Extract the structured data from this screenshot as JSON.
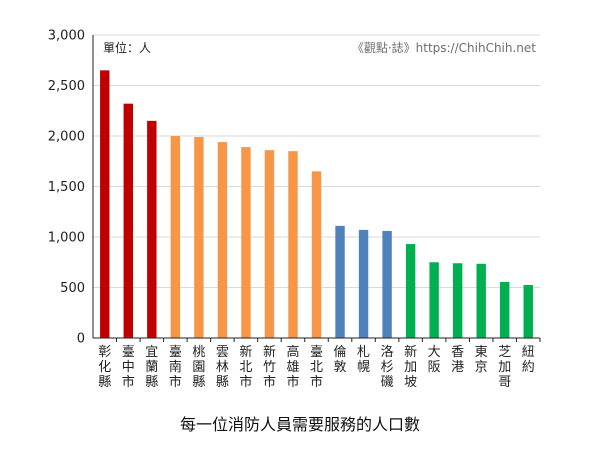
{
  "chart_data": {
    "type": "bar",
    "title": "每一位消防人員需要服務的人口數",
    "unit_label": "單位：人",
    "watermark": "《觀點·誌》https://ChihChih.net",
    "ylim": [
      0,
      3000
    ],
    "yticks": [
      0,
      500,
      1000,
      1500,
      2000,
      2500,
      3000
    ],
    "ytick_labels": [
      "0",
      "500",
      "1,000",
      "1,500",
      "2,000",
      "2,500",
      "3,000"
    ],
    "grid": true,
    "categories": [
      "彰化縣",
      "臺中市",
      "宜蘭縣",
      "臺南市",
      "桃園縣",
      "雲林縣",
      "新北市",
      "新竹市",
      "高雄市",
      "臺北市",
      "倫敦",
      "札幌",
      "洛杉磯",
      "新加坡",
      "大阪",
      "香港",
      "東京",
      "芝加哥",
      "紐約"
    ],
    "values": [
      2650,
      2320,
      2150,
      2000,
      1990,
      1940,
      1890,
      1860,
      1850,
      1650,
      1110,
      1070,
      1060,
      930,
      750,
      740,
      735,
      555,
      525
    ],
    "bar_colors": [
      "#c00000",
      "#c00000",
      "#c00000",
      "#f79646",
      "#f79646",
      "#f79646",
      "#f79646",
      "#f79646",
      "#f79646",
      "#f79646",
      "#4f81bd",
      "#4f81bd",
      "#4f81bd",
      "#00b050",
      "#00b050",
      "#00b050",
      "#00b050",
      "#00b050",
      "#00b050"
    ],
    "colors": {
      "grid": "#d9d9d9",
      "axis": "#222222"
    }
  }
}
